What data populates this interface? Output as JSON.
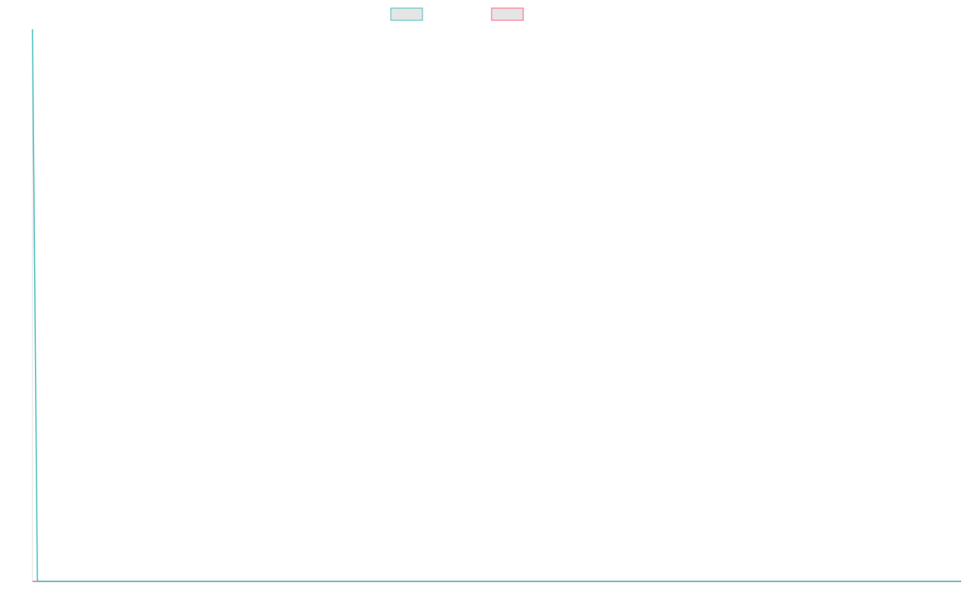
{
  "chart_data": {
    "type": "line",
    "title": "",
    "xlabel": "",
    "ylabel": "",
    "ylim": [
      0,
      100
    ],
    "grid": false,
    "legend": "top",
    "series": [
      {
        "color": "#4bc0c0",
        "values": [
          100,
          0,
          0,
          0,
          0,
          0,
          0,
          0,
          0,
          0,
          0,
          0,
          0,
          0,
          0,
          0,
          0,
          0,
          0,
          0,
          0,
          0,
          0,
          0,
          0,
          0,
          0,
          0,
          0,
          0,
          0,
          0,
          0,
          0,
          0,
          0,
          0,
          0,
          0,
          0,
          0,
          0,
          0,
          0,
          0,
          0,
          0,
          0,
          0,
          0,
          0,
          0,
          0,
          0,
          0,
          0,
          0,
          0,
          0,
          0,
          0,
          0,
          0,
          0,
          0,
          0,
          0,
          0,
          0,
          0,
          0,
          0,
          0,
          0,
          0,
          0,
          0,
          0,
          0,
          0,
          0,
          0,
          0,
          0,
          0,
          0,
          0,
          0,
          0,
          0,
          0,
          0,
          0,
          0,
          0,
          0,
          0,
          0,
          0,
          0,
          0,
          0,
          0,
          0,
          0,
          0,
          0,
          0,
          0,
          0,
          0,
          0,
          0,
          0,
          0,
          0,
          0,
          0,
          0,
          0,
          0,
          0,
          0,
          0,
          0,
          0,
          0,
          0,
          0,
          0,
          0,
          0,
          0,
          0,
          0,
          0,
          0,
          0,
          0,
          0,
          0,
          0,
          0,
          0,
          0,
          0,
          0,
          0,
          0,
          0,
          0,
          0,
          0,
          0,
          0,
          0,
          0,
          0,
          0,
          0,
          0,
          0,
          0,
          0,
          0,
          0,
          0,
          0,
          0,
          0,
          0,
          0,
          0,
          0,
          0,
          0,
          0,
          0,
          0,
          0,
          0,
          0,
          0,
          0,
          0,
          0,
          0,
          0,
          0,
          0,
          0
        ]
      },
      {
        "color": "#ff6384",
        "values": [
          0,
          0,
          0,
          0,
          0,
          0,
          0,
          0,
          0,
          0,
          0,
          0,
          0,
          0,
          0,
          0,
          0,
          0,
          0,
          0,
          0,
          0,
          0,
          0,
          0,
          0,
          0,
          0,
          0,
          0,
          0,
          0,
          0,
          0,
          0,
          0,
          0,
          0,
          0,
          0,
          0,
          0,
          0,
          0,
          0,
          0,
          0,
          0,
          0,
          0,
          0,
          0,
          0,
          0,
          0,
          0,
          0,
          0,
          0,
          0,
          0,
          0,
          0,
          0,
          0,
          0,
          0,
          0,
          0,
          0,
          0,
          0,
          0,
          0,
          0,
          0,
          0,
          0,
          0,
          0,
          0,
          0,
          0,
          0,
          0,
          0,
          0,
          0,
          0,
          0,
          0,
          0,
          0,
          0,
          0,
          0,
          0,
          0,
          0,
          0,
          0,
          0,
          0,
          0,
          0,
          0,
          0,
          0,
          0,
          0,
          0,
          0,
          0,
          0,
          0,
          0,
          0,
          0,
          0,
          0,
          0,
          0,
          0,
          0,
          0,
          0,
          0,
          0,
          0,
          0,
          0,
          0,
          0,
          0,
          0,
          0,
          0,
          0,
          0,
          0,
          0,
          0,
          0,
          0,
          0,
          0,
          0,
          0,
          0,
          0,
          0,
          0,
          0,
          0,
          0,
          0,
          0,
          0,
          0,
          0,
          0,
          0,
          0,
          0,
          0,
          0,
          0,
          0,
          0,
          0,
          0,
          0,
          0,
          0,
          0,
          0,
          0,
          0,
          0,
          0,
          0,
          0,
          0,
          0,
          0,
          0,
          0,
          0,
          0,
          0,
          0
        ]
      }
    ]
  }
}
